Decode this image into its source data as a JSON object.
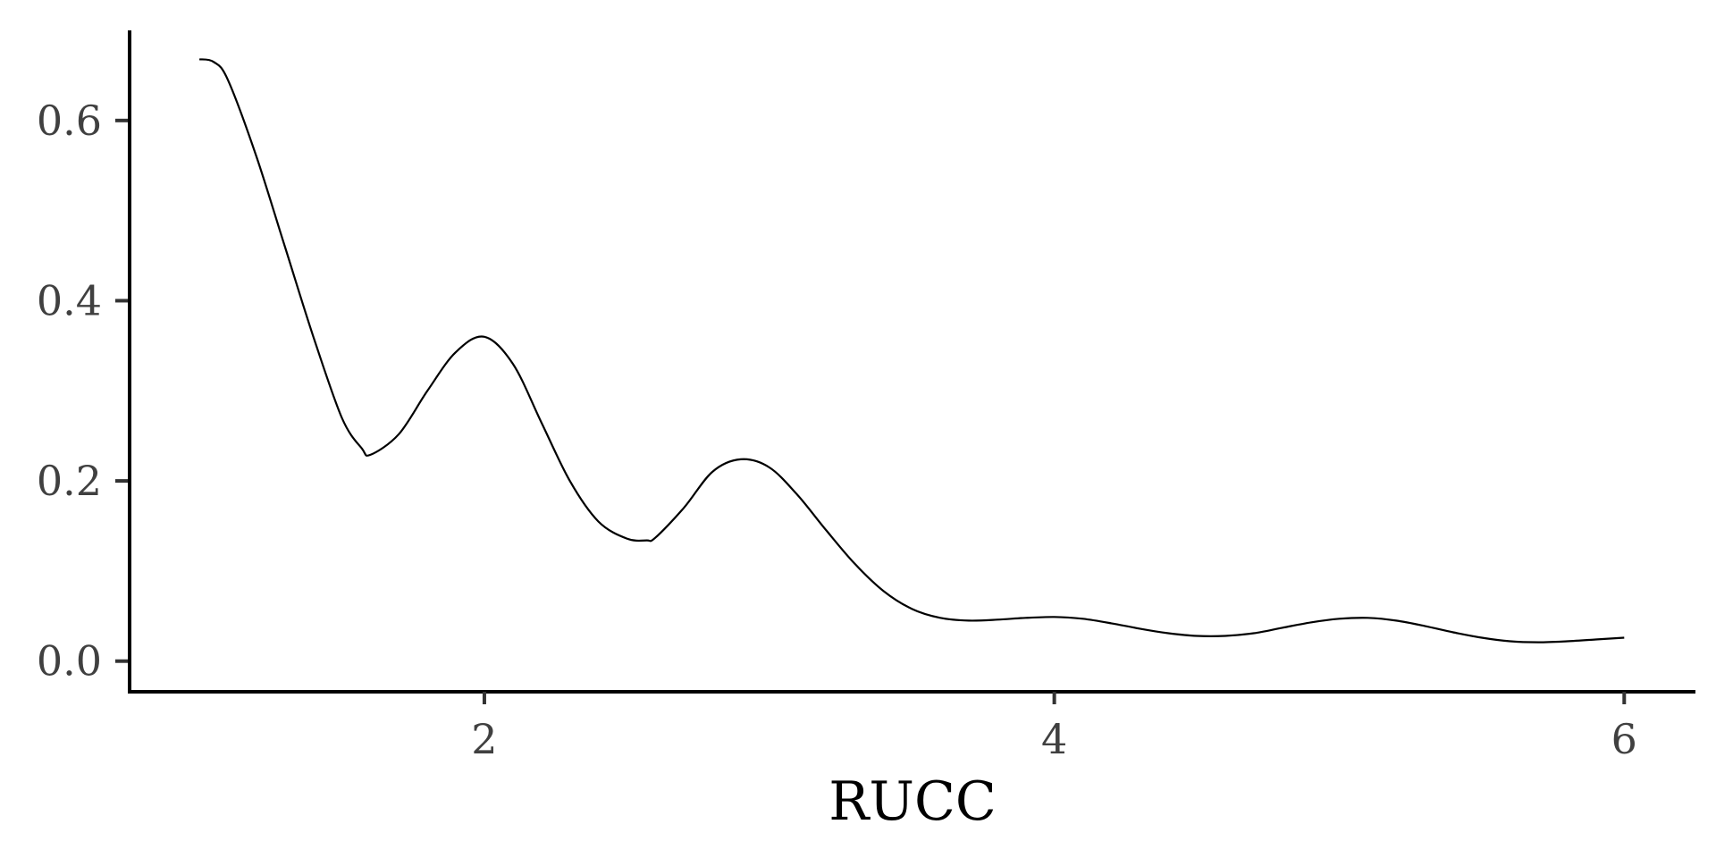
{
  "chart_data": {
    "type": "line",
    "xlabel": "RUCC",
    "ylabel": "",
    "title": "",
    "xlim": [
      0.755,
      6.25
    ],
    "ylim": [
      -0.034,
      0.7
    ],
    "x_ticks": [
      {
        "value": 2,
        "label": "2"
      },
      {
        "value": 4,
        "label": "4"
      },
      {
        "value": 6,
        "label": "6"
      }
    ],
    "y_ticks": [
      {
        "value": 0.0,
        "label": "0.0"
      },
      {
        "value": 0.2,
        "label": "0.2"
      },
      {
        "value": 0.4,
        "label": "0.4"
      },
      {
        "value": 0.6,
        "label": "0.6"
      }
    ],
    "grid": false,
    "legend": "none",
    "line_color": "#000000",
    "series": [
      {
        "x": [
          1.0,
          1.05,
          1.1,
          1.2,
          1.3,
          1.4,
          1.5,
          1.57,
          1.6,
          1.7,
          1.8,
          1.9,
          2.0,
          2.1,
          2.2,
          2.3,
          2.4,
          2.5,
          2.57,
          2.6,
          2.7,
          2.8,
          2.9,
          3.0,
          3.1,
          3.2,
          3.3,
          3.4,
          3.5,
          3.6,
          3.7,
          3.8,
          3.9,
          4.0,
          4.1,
          4.2,
          4.3,
          4.4,
          4.5,
          4.6,
          4.7,
          4.8,
          4.9,
          5.0,
          5.1,
          5.2,
          5.3,
          5.4,
          5.5,
          5.6,
          5.7,
          5.8,
          5.9,
          6.0
        ],
        "y": [
          0.668,
          0.665,
          0.645,
          0.56,
          0.46,
          0.36,
          0.27,
          0.236,
          0.229,
          0.252,
          0.3,
          0.343,
          0.36,
          0.33,
          0.265,
          0.2,
          0.155,
          0.136,
          0.134,
          0.137,
          0.17,
          0.21,
          0.224,
          0.215,
          0.184,
          0.145,
          0.108,
          0.078,
          0.058,
          0.048,
          0.045,
          0.046,
          0.048,
          0.049,
          0.047,
          0.042,
          0.036,
          0.031,
          0.028,
          0.028,
          0.031,
          0.037,
          0.043,
          0.047,
          0.048,
          0.045,
          0.039,
          0.032,
          0.026,
          0.022,
          0.021,
          0.022,
          0.024,
          0.026
        ]
      }
    ]
  }
}
